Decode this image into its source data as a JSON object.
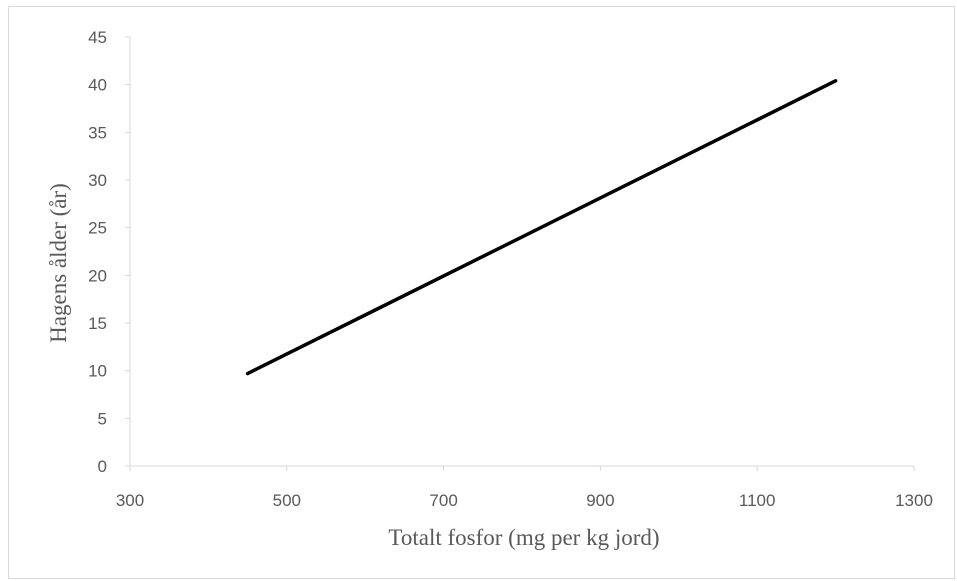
{
  "chart_data": {
    "type": "line",
    "title": "",
    "xlabel": "Totalt fosfor (mg per kg jord)",
    "ylabel": "Hagens ålder (år)",
    "xlim": [
      300,
      1300
    ],
    "ylim": [
      0,
      45
    ],
    "x_ticks": [
      "300",
      "500",
      "700",
      "900",
      "1100",
      "1300"
    ],
    "y_ticks": [
      "0",
      "5",
      "10",
      "15",
      "20",
      "25",
      "30",
      "35",
      "40",
      "45"
    ],
    "grid": false,
    "legend": "none",
    "series": [
      {
        "x": [
          450,
          1200
        ],
        "y": [
          9.7,
          40.4
        ],
        "color": "#000000"
      }
    ]
  }
}
